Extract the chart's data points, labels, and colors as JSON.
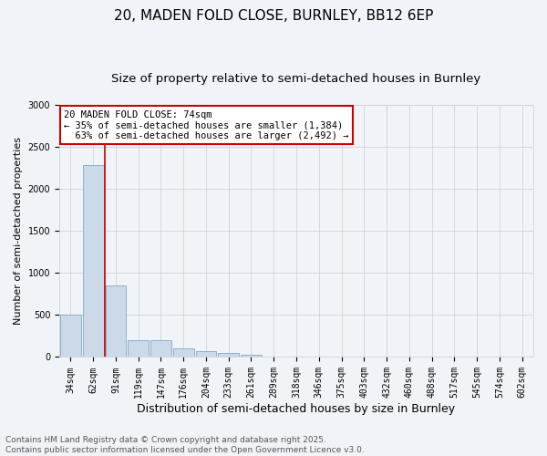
{
  "title": "20, MADEN FOLD CLOSE, BURNLEY, BB12 6EP",
  "subtitle": "Size of property relative to semi-detached houses in Burnley",
  "xlabel": "Distribution of semi-detached houses by size in Burnley",
  "ylabel": "Number of semi-detached properties",
  "categories": [
    "34sqm",
    "62sqm",
    "91sqm",
    "119sqm",
    "147sqm",
    "176sqm",
    "204sqm",
    "233sqm",
    "261sqm",
    "289sqm",
    "318sqm",
    "346sqm",
    "375sqm",
    "403sqm",
    "432sqm",
    "460sqm",
    "488sqm",
    "517sqm",
    "545sqm",
    "574sqm",
    "602sqm"
  ],
  "values": [
    500,
    2280,
    850,
    200,
    200,
    100,
    65,
    45,
    25,
    5,
    3,
    0,
    0,
    0,
    0,
    0,
    0,
    0,
    0,
    0,
    0
  ],
  "bar_color": "#ccd9e8",
  "bar_edge_color": "#7aaac8",
  "grid_color": "#cccccc",
  "background_color": "#f0f4f8",
  "property_label": "20 MADEN FOLD CLOSE: 74sqm",
  "pct_smaller": 35,
  "pct_larger": 63,
  "count_smaller": 1384,
  "count_larger": 2492,
  "annotation_box_color": "#ffffff",
  "annotation_box_edge_color": "#cc0000",
  "footer_line1": "Contains HM Land Registry data © Crown copyright and database right 2025.",
  "footer_line2": "Contains public sector information licensed under the Open Government Licence v3.0.",
  "ylim": [
    0,
    3000
  ],
  "title_fontsize": 11,
  "subtitle_fontsize": 9.5,
  "xlabel_fontsize": 9,
  "ylabel_fontsize": 8,
  "tick_fontsize": 7,
  "footer_fontsize": 6.5,
  "annotation_fontsize": 7.5
}
